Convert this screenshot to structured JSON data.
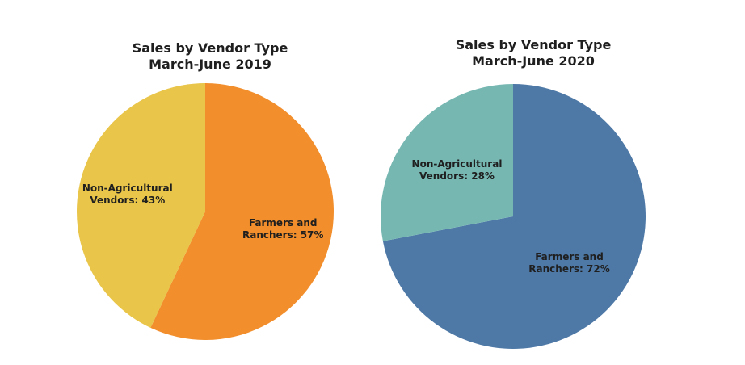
{
  "chart_data": [
    {
      "type": "pie",
      "title": "Sales by Vendor Type",
      "subtitle": "March-June 2019",
      "slices": [
        {
          "label_lines": [
            "Farmers and",
            "Ranchers: 57%"
          ],
          "value": 57,
          "color": "#F28E2B"
        },
        {
          "label_lines": [
            "Non-Agricultural",
            "Vendors: 43%"
          ],
          "value": 43,
          "color": "#E9C549"
        }
      ]
    },
    {
      "type": "pie",
      "title": "Sales by Vendor Type",
      "subtitle": "March-June 2020",
      "slices": [
        {
          "label_lines": [
            "Farmers and",
            "Ranchers: 72%"
          ],
          "value": 72,
          "color": "#4E79A7"
        },
        {
          "label_lines": [
            "Non-Agricultural",
            "Vendors: 28%"
          ],
          "value": 28,
          "color": "#76B7B2"
        }
      ]
    }
  ]
}
